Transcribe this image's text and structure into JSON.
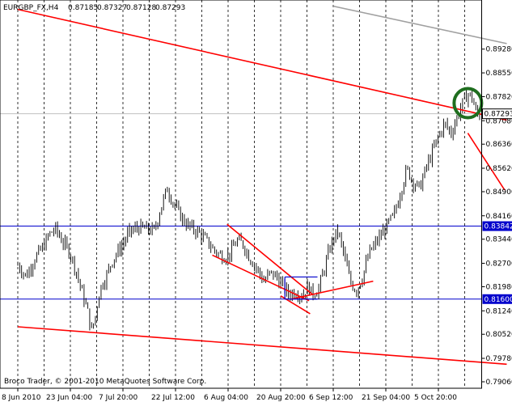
{
  "header": {
    "symbol": "EURGBP_FX,H4",
    "open": "0.87185",
    "high": "0.87327",
    "low": "0.87128",
    "close": "0.87293"
  },
  "footer": {
    "copyright": "Broco Trader, © 2001-2010 MetaQuotes Software Corp."
  },
  "colors": {
    "background": "#ffffff",
    "candle": "#000000",
    "trendline": "#ff0000",
    "hline": "#0000cc",
    "circle": "#1f6e1f",
    "gray_line": "#a0a0a0",
    "grid": "#000000"
  },
  "chart_data": {
    "type": "candlestick",
    "ylim": [
      0.7906,
      0.9059
    ],
    "y_ticks": [
      "0.89280",
      "0.88550",
      "0.87820",
      "0.87080",
      "0.86360",
      "0.85620",
      "0.84900",
      "0.84160",
      "0.83440",
      "0.82700",
      "0.81980",
      "0.81240",
      "0.80520",
      "0.79780",
      "0.79060"
    ],
    "x_ticks": [
      "8 Jun 2010",
      "23 Jun 04:00",
      "7 Jul 20:00",
      "22 Jul 12:00",
      "6 Aug 04:00",
      "20 Aug 20:00",
      "6 Sep 12:00",
      "21 Sep 04:00",
      "5 Oct 20:00"
    ],
    "current_price": "0.87293",
    "horizontal_lines": [
      {
        "value": 0.83842,
        "label": "0.83842"
      },
      {
        "value": 0.816,
        "label": "0.81600"
      }
    ],
    "price_path": [
      [
        0.0,
        0.8265
      ],
      [
        0.8,
        0.823
      ],
      [
        1.6,
        0.8285
      ],
      [
        2.4,
        0.832
      ],
      [
        3.0,
        0.836
      ],
      [
        3.6,
        0.8375
      ],
      [
        4.2,
        0.834
      ],
      [
        5.0,
        0.83
      ],
      [
        5.6,
        0.824
      ],
      [
        6.2,
        0.817
      ],
      [
        6.6,
        0.813
      ],
      [
        7.0,
        0.806
      ],
      [
        7.4,
        0.811
      ],
      [
        7.8,
        0.819
      ],
      [
        8.4,
        0.823
      ],
      [
        9.0,
        0.828
      ],
      [
        9.8,
        0.832
      ],
      [
        10.6,
        0.8365
      ],
      [
        11.4,
        0.838
      ],
      [
        12.2,
        0.8375
      ],
      [
        13.0,
        0.837
      ],
      [
        13.6,
        0.844
      ],
      [
        14.2,
        0.85
      ],
      [
        14.6,
        0.847
      ],
      [
        15.2,
        0.843
      ],
      [
        15.8,
        0.84
      ],
      [
        16.4,
        0.838
      ],
      [
        17.0,
        0.837
      ],
      [
        17.8,
        0.8345
      ],
      [
        18.4,
        0.832
      ],
      [
        19.0,
        0.83
      ],
      [
        19.6,
        0.829
      ],
      [
        20.2,
        0.83
      ],
      [
        20.8,
        0.834
      ],
      [
        21.4,
        0.833
      ],
      [
        22.0,
        0.829
      ],
      [
        22.8,
        0.825
      ],
      [
        23.4,
        0.8215
      ],
      [
        24.0,
        0.824
      ],
      [
        24.6,
        0.823
      ],
      [
        25.2,
        0.82
      ],
      [
        25.8,
        0.8175
      ],
      [
        26.4,
        0.8185
      ],
      [
        27.0,
        0.817
      ],
      [
        27.6,
        0.82
      ],
      [
        28.0,
        0.8175
      ],
      [
        28.6,
        0.819
      ],
      [
        29.2,
        0.826
      ],
      [
        29.8,
        0.833
      ],
      [
        30.4,
        0.837
      ],
      [
        31.0,
        0.83
      ],
      [
        31.6,
        0.8215
      ],
      [
        32.2,
        0.8185
      ],
      [
        32.8,
        0.823
      ],
      [
        33.4,
        0.83
      ],
      [
        34.0,
        0.833
      ],
      [
        34.6,
        0.836
      ],
      [
        35.2,
        0.839
      ],
      [
        35.8,
        0.842
      ],
      [
        36.4,
        0.849
      ],
      [
        37.0,
        0.856
      ],
      [
        37.6,
        0.852
      ],
      [
        38.2,
        0.85
      ],
      [
        38.8,
        0.856
      ],
      [
        39.4,
        0.861
      ],
      [
        40.0,
        0.866
      ],
      [
        40.6,
        0.87
      ],
      [
        41.2,
        0.867
      ],
      [
        41.8,
        0.872
      ],
      [
        42.4,
        0.877
      ],
      [
        42.8,
        0.879
      ],
      [
        43.2,
        0.878
      ],
      [
        43.6,
        0.873
      ],
      [
        44.0,
        0.8725
      ]
    ],
    "trendlines": [
      {
        "name": "upper-channel",
        "x1": 0,
        "y1": 0.905,
        "x2": 46.5,
        "y2": 0.871
      },
      {
        "name": "lower-channel",
        "x1": 0,
        "y1": 0.8075,
        "x2": 46.5,
        "y2": 0.796
      },
      {
        "name": "extension",
        "x1": 42.8,
        "y1": 0.867,
        "x2": 46.3,
        "y2": 0.8495
      },
      {
        "name": "wedge-top",
        "x1": 19.9,
        "y1": 0.839,
        "x2": 28.0,
        "y2": 0.8175
      },
      {
        "name": "wedge-bottom",
        "x1": 18.5,
        "y1": 0.8295,
        "x2": 27.7,
        "y2": 0.8155
      },
      {
        "name": "wedge-down",
        "x1": 25.0,
        "y1": 0.817,
        "x2": 27.8,
        "y2": 0.8115
      },
      {
        "name": "support-rise",
        "x1": 26.0,
        "y1": 0.816,
        "x2": 33.8,
        "y2": 0.8215
      }
    ],
    "gray_line": {
      "x1": 30.0,
      "y1": 0.906,
      "x2": 46.5,
      "y2": 0.8945
    },
    "blue_box": {
      "x1": 25.4,
      "x2": 28.5,
      "y1": 0.8228,
      "y2": 0.816
    },
    "circle": {
      "x": 42.8,
      "y": 0.8762
    }
  }
}
